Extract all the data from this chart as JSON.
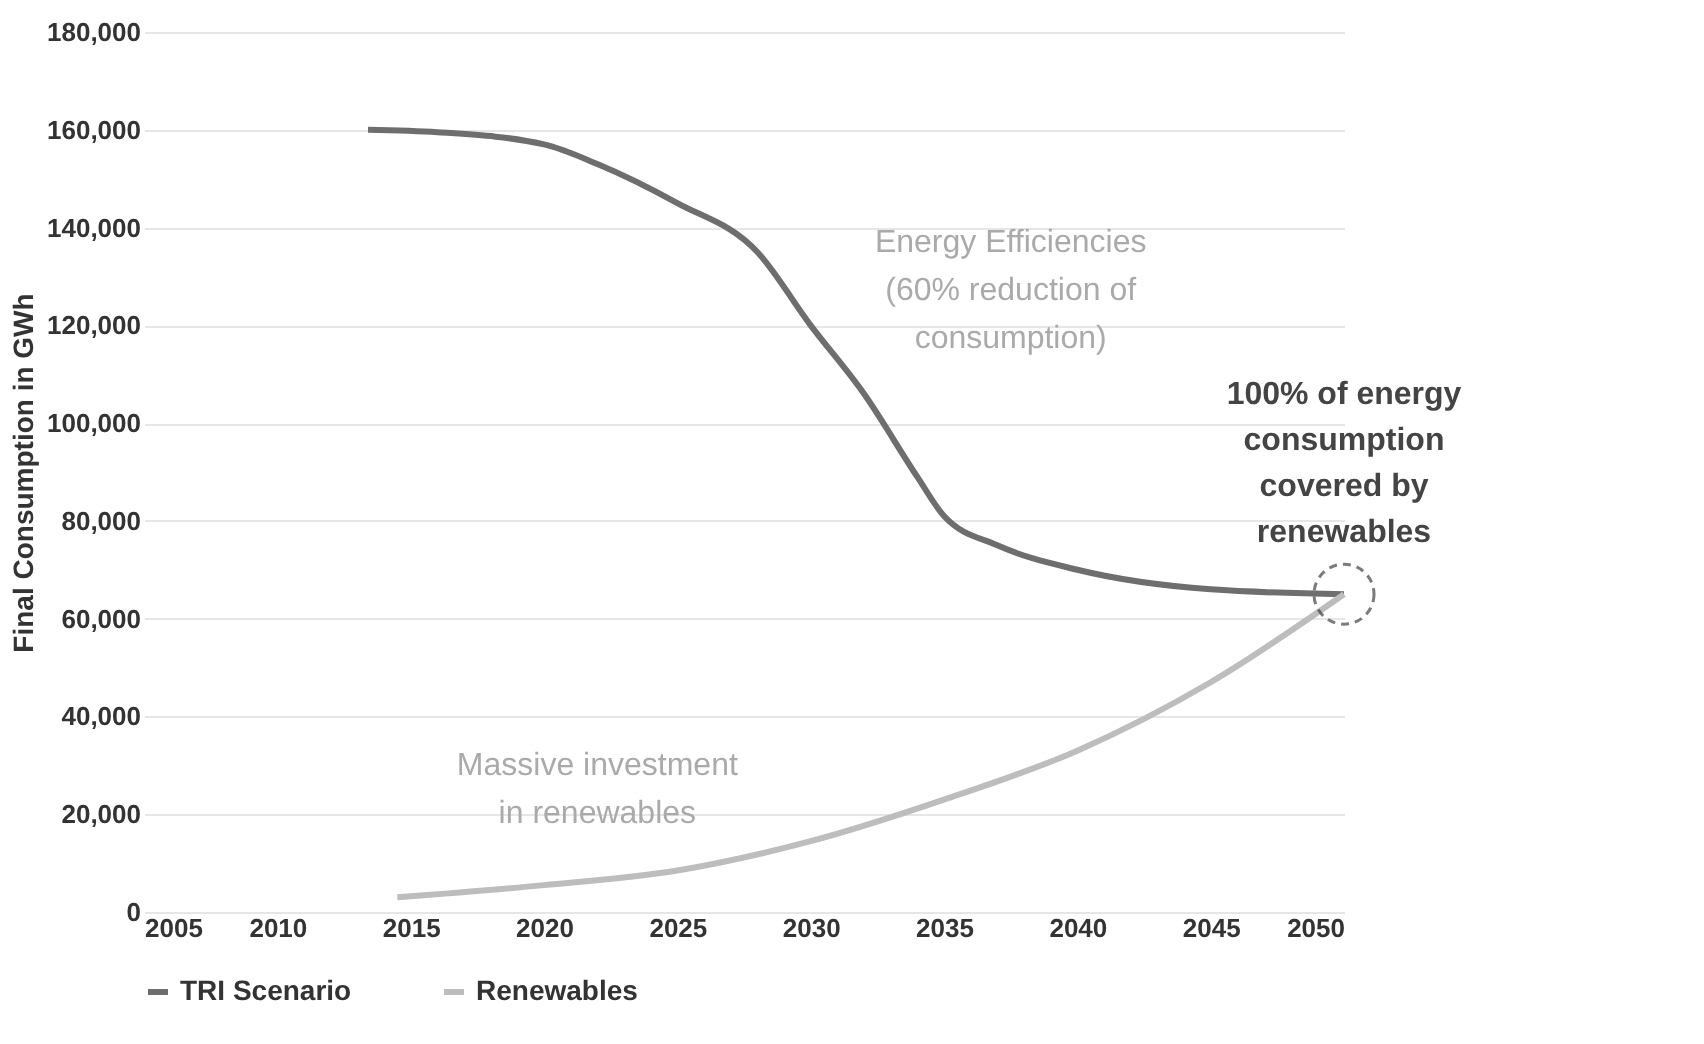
{
  "chart_data": {
    "type": "line",
    "ylabel": "Final Consumption in GWh",
    "xlim": [
      2005,
      2050
    ],
    "xticks": [
      2005,
      2010,
      2015,
      2020,
      2025,
      2030,
      2035,
      2040,
      2045,
      2050
    ],
    "ylim": [
      0,
      180000
    ],
    "yticks": [
      0,
      {
        "value": 20000,
        "label": "20,000"
      },
      {
        "value": 40000,
        "label": "40,000"
      },
      {
        "value": 60000,
        "label": "60,000"
      },
      {
        "value": 80000,
        "label": "80,000"
      },
      {
        "value": 100000,
        "label": "100,000"
      },
      {
        "value": 120000,
        "label": "120,000"
      },
      {
        "value": 140000,
        "label": "140,000"
      },
      {
        "value": 160000,
        "label": "160,000"
      },
      {
        "value": 180000,
        "label": "180,000"
      }
    ],
    "grid": "y",
    "legend": "bottom",
    "line_style": "solid",
    "marker": "none",
    "series": [
      {
        "name": "TRI Scenario",
        "color": "#6e6e6e",
        "x": [
          2013.4,
          2016,
          2020,
          2022,
          2025,
          2028,
          2030,
          2032,
          2034,
          2035,
          2037,
          2040,
          2045,
          2050
        ],
        "values": [
          160000,
          159500,
          157000,
          153000,
          145000,
          135000,
          120000,
          106000,
          89000,
          81000,
          75000,
          70000,
          66000,
          65000
        ]
      },
      {
        "name": "Renewables",
        "color": "#bdbdbd",
        "x": [
          2014.5,
          2020,
          2025,
          2030,
          2035,
          2040,
          2045,
          2050
        ],
        "values": [
          3000,
          5500,
          8500,
          14500,
          23000,
          33000,
          47000,
          65000
        ]
      }
    ],
    "annotations": [
      "Energy Efficiencies (60% reduction of consumption)",
      "Massive investment in renewables",
      {
        "text": "100% of energy consumption covered by renewables",
        "x": 2050,
        "y": 65000
      }
    ]
  }
}
